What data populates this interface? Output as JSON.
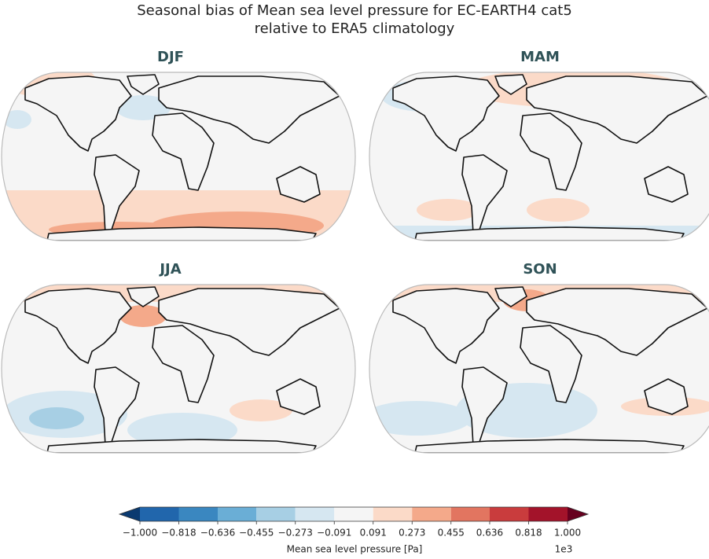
{
  "title": [
    "Seasonal bias of Mean sea level pressure for EC-EARTH4 cat5",
    "relative to ERA5 climatology"
  ],
  "panels": [
    {
      "title": "DJF"
    },
    {
      "title": "MAM"
    },
    {
      "title": "JJA"
    },
    {
      "title": "SON"
    }
  ],
  "colorbar": {
    "ticks": [
      {
        "value": -1,
        "label": "−1.000"
      },
      {
        "value": -0.818,
        "label": "−0.818"
      },
      {
        "value": -0.636,
        "label": "−0.636"
      },
      {
        "value": -0.455,
        "label": "−0.455"
      },
      {
        "value": -0.273,
        "label": "−0.273"
      },
      {
        "value": -0.091,
        "label": "−0.091"
      },
      {
        "value": 0.091,
        "label": "0.091"
      },
      {
        "value": 0.273,
        "label": "0.273"
      },
      {
        "value": 0.455,
        "label": "0.455"
      },
      {
        "value": 0.636,
        "label": "0.636"
      },
      {
        "value": 0.818,
        "label": "0.818"
      },
      {
        "value": 1,
        "label": "1.000"
      }
    ],
    "colors": [
      "#2166ac",
      "#3a87c0",
      "#6aaed6",
      "#a7cfe4",
      "#d6e7f1",
      "#f5f5f5",
      "#fbdac8",
      "#f4a98a",
      "#e27560",
      "#c93c3d",
      "#a3132a"
    ],
    "extend_colors": [
      "#0b3a70",
      "#67001f"
    ],
    "label": "Mean sea level pressure [Pa]",
    "multiplier": "1e3"
  }
}
